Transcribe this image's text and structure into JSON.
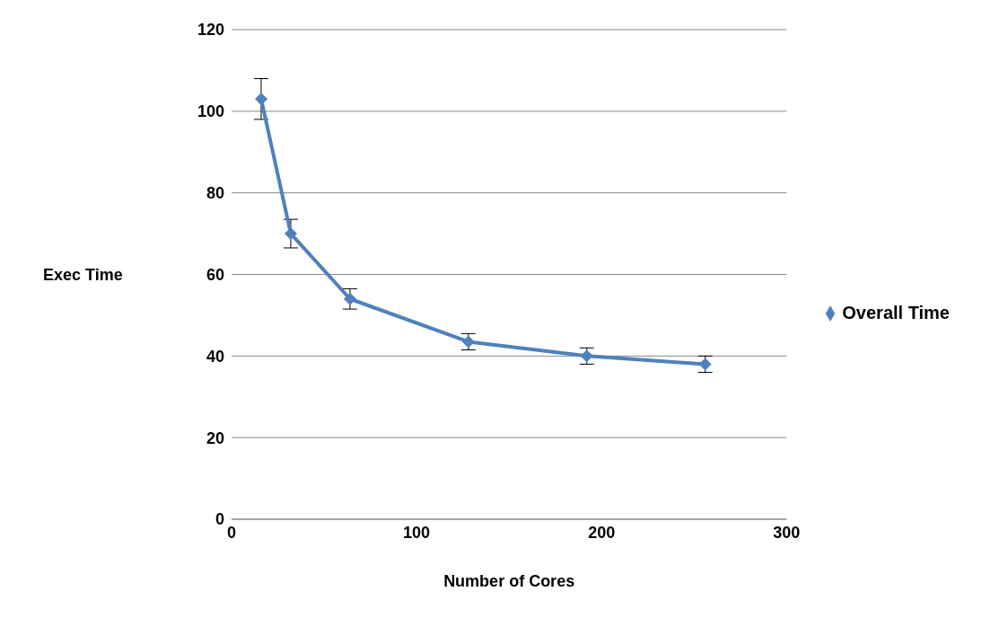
{
  "chart_data": {
    "type": "line",
    "xlabel": "Number of Cores",
    "ylabel": "Exec Time",
    "x": [
      16,
      32,
      64,
      128,
      192,
      256
    ],
    "series": [
      {
        "name": "Overall Time",
        "color": "#4f81bd",
        "values": [
          103,
          70,
          54,
          43.5,
          40,
          38
        ],
        "errors": [
          5,
          3.5,
          2.5,
          2,
          2,
          2
        ]
      }
    ],
    "xlim": [
      0,
      300
    ],
    "xticks": [
      0,
      100,
      200,
      300
    ],
    "ylim": [
      0,
      120
    ],
    "yticks": [
      0,
      20,
      40,
      60,
      80,
      100,
      120
    ],
    "grid": "y",
    "legend": "right",
    "marker": "diamond",
    "line_style": "solid"
  }
}
